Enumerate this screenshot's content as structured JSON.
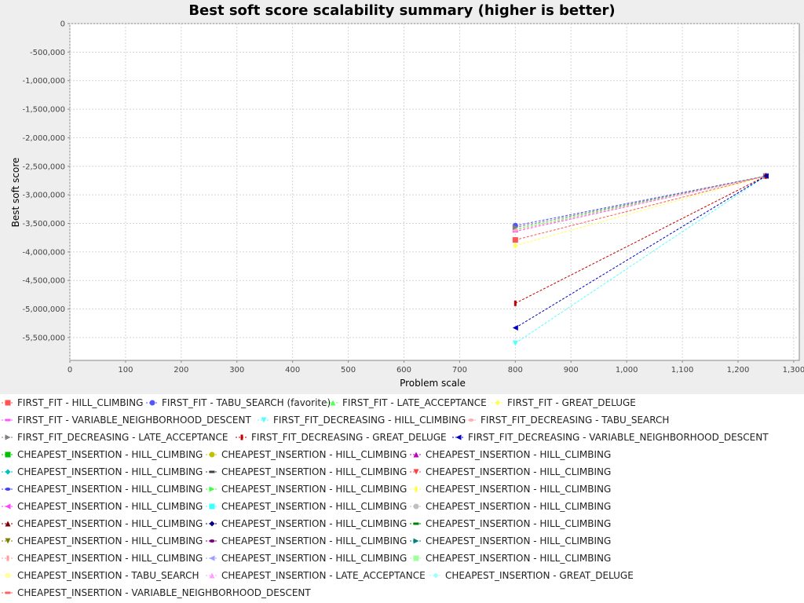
{
  "chart_data": {
    "type": "line",
    "title": "Best soft score scalability summary (higher is better)",
    "xlabel": "Problem scale",
    "ylabel": "Best soft score",
    "xlim": [
      0,
      1310
    ],
    "ylim": [
      -5900000,
      0
    ],
    "x_ticks": [
      0,
      100,
      200,
      300,
      400,
      500,
      600,
      700,
      800,
      900,
      1000,
      1100,
      1200,
      1300
    ],
    "x_tick_labels": [
      "0",
      "100",
      "200",
      "300",
      "400",
      "500",
      "600",
      "700",
      "800",
      "900",
      "1,000",
      "1,100",
      "1,200",
      "1,300"
    ],
    "y_ticks": [
      0,
      -500000,
      -1000000,
      -1500000,
      -2000000,
      -2500000,
      -3000000,
      -3500000,
      -4000000,
      -4500000,
      -5000000,
      -5500000
    ],
    "y_tick_labels": [
      "0",
      "-500,000",
      "-1,000,000",
      "-1,500,000",
      "-2,000,000",
      "-2,500,000",
      "-3,000,000",
      "-3,500,000",
      "-4,000,000",
      "-4,500,000",
      "-5,000,000",
      "-5,500,000"
    ],
    "grid": true,
    "legend_position": "bottom",
    "series": [
      {
        "name": "FIRST_FIT - HILL_CLIMBING",
        "color": "#ff5555",
        "marker": "square",
        "x": [
          800,
          1250
        ],
        "y": [
          -3790000,
          -2670000
        ]
      },
      {
        "name": "FIRST_FIT - TABU_SEARCH (favorite)",
        "color": "#5555ff",
        "marker": "circle",
        "x": [
          800,
          1250
        ],
        "y": [
          -3540000,
          -2670000
        ]
      },
      {
        "name": "FIRST_FIT - LATE_ACCEPTANCE",
        "color": "#55ff55",
        "marker": "triangle-up",
        "x": [
          800,
          1250
        ],
        "y": [
          -3600000,
          -2670000
        ]
      },
      {
        "name": "FIRST_FIT - GREAT_DELUGE",
        "color": "#ffff55",
        "marker": "diamond",
        "x": [
          800,
          1250
        ],
        "y": [
          -3890000,
          -2670000
        ]
      },
      {
        "name": "FIRST_FIT - VARIABLE_NEIGHBORHOOD_DESCENT",
        "color": "#ff55ff",
        "marker": "hrect",
        "x": [
          800,
          1250
        ],
        "y": [
          -3640000,
          -2670000
        ]
      },
      {
        "name": "FIRST_FIT_DECREASING - HILL_CLIMBING",
        "color": "#55ffff",
        "marker": "triangle-down",
        "x": [
          800,
          1250
        ],
        "y": [
          -5600000,
          -2670000
        ]
      },
      {
        "name": "FIRST_FIT_DECREASING - TABU_SEARCH",
        "color": "#ffafaf",
        "marker": "ellipse",
        "x": [
          800,
          1250
        ],
        "y": [
          -3620000,
          -2670000
        ]
      },
      {
        "name": "FIRST_FIT_DECREASING - LATE_ACCEPTANCE",
        "color": "#808080",
        "marker": "triangle-right",
        "x": [
          800,
          1250
        ],
        "y": [
          -3570000,
          -2670000
        ]
      },
      {
        "name": "FIRST_FIT_DECREASING - GREAT_DELUGE",
        "color": "#c00000",
        "marker": "vrect",
        "x": [
          800,
          1250
        ],
        "y": [
          -4900000,
          -2670000
        ]
      },
      {
        "name": "FIRST_FIT_DECREASING - VARIABLE_NEIGHBORHOOD_DESCENT",
        "color": "#0000c0",
        "marker": "triangle-left",
        "x": [
          800,
          1250
        ],
        "y": [
          -5330000,
          -2670000
        ]
      },
      {
        "name": "CHEAPEST_INSERTION - HILL_CLIMBING",
        "color": "#00c000",
        "marker": "square",
        "x": [],
        "y": []
      },
      {
        "name": "CHEAPEST_INSERTION - HILL_CLIMBING",
        "color": "#c0c000",
        "marker": "circle",
        "x": [],
        "y": []
      },
      {
        "name": "CHEAPEST_INSERTION - HILL_CLIMBING",
        "color": "#c000c0",
        "marker": "triangle-up",
        "x": [],
        "y": []
      },
      {
        "name": "CHEAPEST_INSERTION - HILL_CLIMBING",
        "color": "#00c0c0",
        "marker": "diamond",
        "x": [],
        "y": []
      },
      {
        "name": "CHEAPEST_INSERTION - HILL_CLIMBING",
        "color": "#404040",
        "marker": "hrect",
        "x": [],
        "y": []
      },
      {
        "name": "CHEAPEST_INSERTION - HILL_CLIMBING",
        "color": "#ff4040",
        "marker": "triangle-down",
        "x": [],
        "y": []
      },
      {
        "name": "CHEAPEST_INSERTION - HILL_CLIMBING",
        "color": "#4040ff",
        "marker": "ellipse",
        "x": [],
        "y": []
      },
      {
        "name": "CHEAPEST_INSERTION - HILL_CLIMBING",
        "color": "#40ff40",
        "marker": "triangle-right",
        "x": [],
        "y": []
      },
      {
        "name": "CHEAPEST_INSERTION - HILL_CLIMBING",
        "color": "#ffff40",
        "marker": "vrect",
        "x": [],
        "y": []
      },
      {
        "name": "CHEAPEST_INSERTION - HILL_CLIMBING",
        "color": "#ff40ff",
        "marker": "triangle-left",
        "x": [],
        "y": []
      },
      {
        "name": "CHEAPEST_INSERTION - HILL_CLIMBING",
        "color": "#40ffff",
        "marker": "square",
        "x": [],
        "y": []
      },
      {
        "name": "CHEAPEST_INSERTION - HILL_CLIMBING",
        "color": "#c0c0c0",
        "marker": "circle",
        "x": [],
        "y": []
      },
      {
        "name": "CHEAPEST_INSERTION - HILL_CLIMBING",
        "color": "#800000",
        "marker": "triangle-up",
        "x": [],
        "y": []
      },
      {
        "name": "CHEAPEST_INSERTION - HILL_CLIMBING",
        "color": "#000080",
        "marker": "diamond",
        "x": [],
        "y": []
      },
      {
        "name": "CHEAPEST_INSERTION - HILL_CLIMBING",
        "color": "#008000",
        "marker": "hrect",
        "x": [],
        "y": []
      },
      {
        "name": "CHEAPEST_INSERTION - HILL_CLIMBING",
        "color": "#808000",
        "marker": "triangle-down",
        "x": [],
        "y": []
      },
      {
        "name": "CHEAPEST_INSERTION - HILL_CLIMBING",
        "color": "#800080",
        "marker": "ellipse",
        "x": [],
        "y": []
      },
      {
        "name": "CHEAPEST_INSERTION - HILL_CLIMBING",
        "color": "#008080",
        "marker": "triangle-right",
        "x": [],
        "y": []
      },
      {
        "name": "CHEAPEST_INSERTION - HILL_CLIMBING",
        "color": "#ff9f9f",
        "marker": "vrect",
        "x": [],
        "y": []
      },
      {
        "name": "CHEAPEST_INSERTION - HILL_CLIMBING",
        "color": "#9f9fff",
        "marker": "triangle-left",
        "x": [],
        "y": []
      },
      {
        "name": "CHEAPEST_INSERTION - HILL_CLIMBING",
        "color": "#9fff9f",
        "marker": "square",
        "x": [],
        "y": []
      },
      {
        "name": "CHEAPEST_INSERTION - TABU_SEARCH",
        "color": "#ffff9f",
        "marker": "circle",
        "x": [],
        "y": []
      },
      {
        "name": "CHEAPEST_INSERTION - LATE_ACCEPTANCE",
        "color": "#ff9fff",
        "marker": "triangle-up",
        "x": [],
        "y": []
      },
      {
        "name": "CHEAPEST_INSERTION - GREAT_DELUGE",
        "color": "#9fffff",
        "marker": "diamond",
        "x": [],
        "y": []
      },
      {
        "name": "CHEAPEST_INSERTION - VARIABLE_NEIGHBORHOOD_DESCENT",
        "color": "#ff6060",
        "marker": "hrect",
        "x": [],
        "y": []
      }
    ]
  }
}
